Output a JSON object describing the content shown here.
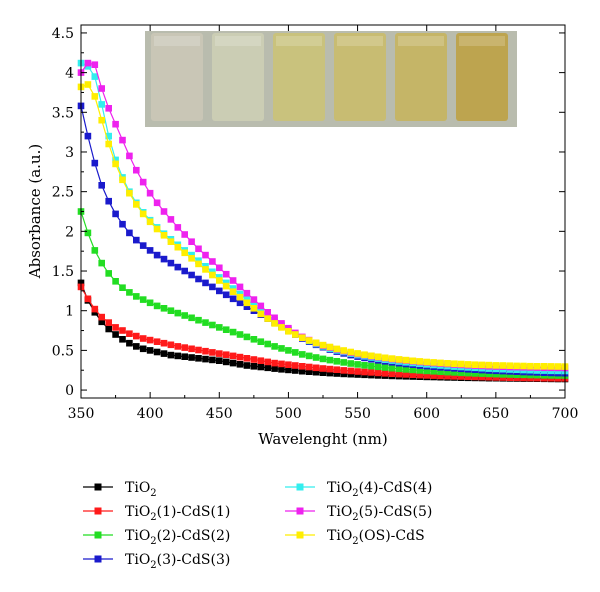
{
  "chart_data": {
    "type": "line",
    "xlabel": "Wavelenght (nm)",
    "ylabel": "Absorbance (a.u.)",
    "xlim": [
      350,
      700
    ],
    "ylim": [
      -0.1,
      4.6
    ],
    "xticks": [
      "350",
      "400",
      "450",
      "500",
      "550",
      "600",
      "650",
      "700"
    ],
    "yticks": [
      "0",
      "0.5",
      "1",
      "1.5",
      "2",
      "2.5",
      "3",
      "3.5",
      "4",
      "4.5"
    ],
    "grid": false,
    "legend_position": "bottom",
    "inset": "photograph of six film samples",
    "x": [
      350,
      355,
      360,
      365,
      370,
      375,
      380,
      385,
      390,
      395,
      400,
      405,
      410,
      415,
      420,
      425,
      430,
      435,
      440,
      445,
      450,
      455,
      460,
      465,
      470,
      475,
      480,
      485,
      490,
      495,
      500,
      505,
      510,
      515,
      520,
      525,
      530,
      535,
      540,
      545,
      550,
      555,
      560,
      565,
      570,
      575,
      580,
      585,
      590,
      595,
      600,
      605,
      610,
      615,
      620,
      625,
      630,
      635,
      640,
      645,
      650,
      655,
      660,
      665,
      670,
      675,
      680,
      685,
      690,
      695,
      700
    ],
    "series": [
      {
        "name": "TiO",
        "sub": "2",
        "suffix": "",
        "color": "#000000",
        "values": [
          1.35,
          1.13,
          0.98,
          0.86,
          0.77,
          0.7,
          0.64,
          0.59,
          0.55,
          0.52,
          0.5,
          0.48,
          0.46,
          0.44,
          0.43,
          0.42,
          0.41,
          0.4,
          0.39,
          0.38,
          0.37,
          0.355,
          0.34,
          0.325,
          0.31,
          0.3,
          0.29,
          0.28,
          0.27,
          0.262,
          0.254,
          0.246,
          0.238,
          0.231,
          0.225,
          0.219,
          0.214,
          0.209,
          0.204,
          0.2,
          0.196,
          0.192,
          0.188,
          0.185,
          0.182,
          0.179,
          0.176,
          0.173,
          0.171,
          0.168,
          0.166,
          0.164,
          0.162,
          0.16,
          0.158,
          0.156,
          0.155,
          0.153,
          0.152,
          0.15,
          0.149,
          0.148,
          0.147,
          0.146,
          0.145,
          0.144,
          0.143,
          0.142,
          0.141,
          0.14,
          0.14
        ]
      },
      {
        "name": "TiO",
        "sub": "2",
        "suffix": "(1)-CdS(1)",
        "color": "#ff1a1a",
        "values": [
          1.3,
          1.15,
          1.02,
          0.92,
          0.85,
          0.79,
          0.75,
          0.71,
          0.68,
          0.65,
          0.63,
          0.61,
          0.59,
          0.57,
          0.55,
          0.535,
          0.52,
          0.505,
          0.49,
          0.475,
          0.46,
          0.445,
          0.43,
          0.415,
          0.4,
          0.385,
          0.37,
          0.355,
          0.34,
          0.33,
          0.32,
          0.31,
          0.3,
          0.29,
          0.28,
          0.272,
          0.264,
          0.256,
          0.248,
          0.241,
          0.234,
          0.228,
          0.222,
          0.216,
          0.211,
          0.206,
          0.201,
          0.197,
          0.193,
          0.189,
          0.185,
          0.182,
          0.179,
          0.176,
          0.173,
          0.171,
          0.168,
          0.166,
          0.164,
          0.162,
          0.16,
          0.158,
          0.156,
          0.155,
          0.153,
          0.152,
          0.151,
          0.15,
          0.149,
          0.148,
          0.148
        ]
      },
      {
        "name": "TiO",
        "sub": "2",
        "suffix": "(2)-CdS(2)",
        "color": "#22dd22",
        "values": [
          2.25,
          1.98,
          1.76,
          1.6,
          1.47,
          1.37,
          1.29,
          1.23,
          1.18,
          1.14,
          1.1,
          1.06,
          1.03,
          1.0,
          0.97,
          0.94,
          0.91,
          0.88,
          0.85,
          0.82,
          0.79,
          0.76,
          0.73,
          0.7,
          0.67,
          0.64,
          0.61,
          0.58,
          0.55,
          0.525,
          0.5,
          0.475,
          0.45,
          0.43,
          0.41,
          0.393,
          0.377,
          0.362,
          0.348,
          0.335,
          0.323,
          0.312,
          0.302,
          0.293,
          0.284,
          0.276,
          0.268,
          0.261,
          0.254,
          0.248,
          0.242,
          0.236,
          0.231,
          0.226,
          0.222,
          0.218,
          0.214,
          0.21,
          0.207,
          0.204,
          0.201,
          0.198,
          0.196,
          0.194,
          0.192,
          0.19,
          0.188,
          0.186,
          0.185,
          0.184,
          0.183
        ]
      },
      {
        "name": "TiO",
        "sub": "2",
        "suffix": "(3)-CdS(3)",
        "color": "#1a1acc",
        "values": [
          3.58,
          3.2,
          2.86,
          2.58,
          2.38,
          2.22,
          2.09,
          1.98,
          1.89,
          1.82,
          1.76,
          1.7,
          1.65,
          1.6,
          1.55,
          1.5,
          1.45,
          1.4,
          1.35,
          1.3,
          1.25,
          1.2,
          1.15,
          1.1,
          1.05,
          1.0,
          0.95,
          0.9,
          0.85,
          0.8,
          0.75,
          0.7,
          0.65,
          0.61,
          0.57,
          0.54,
          0.51,
          0.485,
          0.462,
          0.441,
          0.422,
          0.405,
          0.389,
          0.375,
          0.362,
          0.35,
          0.339,
          0.329,
          0.319,
          0.31,
          0.302,
          0.294,
          0.287,
          0.28,
          0.274,
          0.268,
          0.262,
          0.257,
          0.252,
          0.247,
          0.243,
          0.239,
          0.235,
          0.231,
          0.228,
          0.225,
          0.222,
          0.219,
          0.216,
          0.214,
          0.212
        ]
      },
      {
        "name": "TiO",
        "sub": "2",
        "suffix": "(4)-CdS(4)",
        "color": "#33eeee",
        "values": [
          4.12,
          4.08,
          3.95,
          3.6,
          3.2,
          2.9,
          2.68,
          2.5,
          2.36,
          2.24,
          2.14,
          2.05,
          1.97,
          1.9,
          1.83,
          1.76,
          1.7,
          1.63,
          1.56,
          1.49,
          1.42,
          1.35,
          1.28,
          1.21,
          1.14,
          1.07,
          1.0,
          0.94,
          0.88,
          0.82,
          0.76,
          0.71,
          0.66,
          0.62,
          0.58,
          0.55,
          0.52,
          0.5,
          0.48,
          0.46,
          0.44,
          0.425,
          0.41,
          0.396,
          0.383,
          0.371,
          0.36,
          0.35,
          0.341,
          0.332,
          0.324,
          0.316,
          0.309,
          0.302,
          0.296,
          0.29,
          0.285,
          0.28,
          0.275,
          0.271,
          0.267,
          0.263,
          0.259,
          0.256,
          0.253,
          0.25,
          0.247,
          0.245,
          0.243,
          0.241,
          0.24
        ]
      },
      {
        "name": "TiO",
        "sub": "2",
        "suffix": "(5)-CdS(5)",
        "color": "#ee22ee",
        "values": [
          4.0,
          4.12,
          4.1,
          3.8,
          3.55,
          3.35,
          3.15,
          2.95,
          2.77,
          2.62,
          2.48,
          2.36,
          2.25,
          2.15,
          2.05,
          1.96,
          1.87,
          1.78,
          1.7,
          1.62,
          1.54,
          1.46,
          1.38,
          1.3,
          1.22,
          1.14,
          1.06,
          0.98,
          0.91,
          0.84,
          0.78,
          0.72,
          0.67,
          0.63,
          0.59,
          0.56,
          0.535,
          0.512,
          0.491,
          0.472,
          0.455,
          0.44,
          0.426,
          0.413,
          0.401,
          0.39,
          0.38,
          0.371,
          0.362,
          0.354,
          0.347,
          0.34,
          0.334,
          0.328,
          0.322,
          0.317,
          0.312,
          0.308,
          0.304,
          0.3,
          0.297,
          0.294,
          0.291,
          0.289,
          0.287,
          0.285,
          0.283,
          0.281,
          0.28,
          0.279,
          0.278
        ]
      },
      {
        "name": "TiO",
        "sub": "2",
        "suffix": "(OS)-CdS",
        "color": "#ffee00",
        "values": [
          3.82,
          3.85,
          3.7,
          3.4,
          3.1,
          2.85,
          2.65,
          2.48,
          2.34,
          2.22,
          2.12,
          2.03,
          1.95,
          1.87,
          1.8,
          1.73,
          1.66,
          1.59,
          1.52,
          1.45,
          1.38,
          1.31,
          1.24,
          1.17,
          1.1,
          1.03,
          0.96,
          0.9,
          0.84,
          0.79,
          0.74,
          0.7,
          0.66,
          0.625,
          0.595,
          0.567,
          0.542,
          0.519,
          0.498,
          0.479,
          0.462,
          0.446,
          0.432,
          0.419,
          0.407,
          0.396,
          0.386,
          0.377,
          0.369,
          0.361,
          0.354,
          0.348,
          0.342,
          0.337,
          0.332,
          0.328,
          0.324,
          0.32,
          0.317,
          0.314,
          0.311,
          0.309,
          0.307,
          0.305,
          0.303,
          0.301,
          0.3,
          0.299,
          0.298,
          0.297,
          0.296
        ]
      }
    ]
  },
  "inset_photo": {
    "bg": "#b9bcae",
    "samples": [
      "#c9c6b6",
      "#cbcdb4",
      "#c9c27d",
      "#c8bc72",
      "#c5b567",
      "#bda44f"
    ]
  }
}
